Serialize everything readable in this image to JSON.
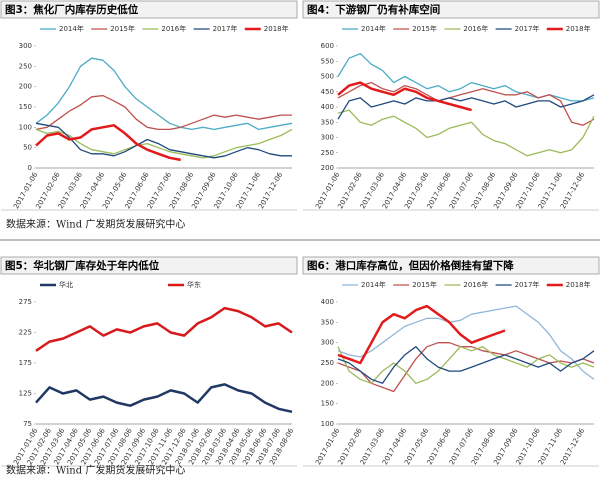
{
  "chart_data": [
    {
      "type": "line",
      "title": "图3：焦化厂内库存历史低位",
      "ylim": [
        0,
        300
      ],
      "yticks": [
        0,
        50,
        100,
        150,
        200,
        250,
        300
      ],
      "categories": [
        "2017-01-06",
        null,
        "2017-02-06",
        null,
        "2017-03-06",
        null,
        "2017-04-06",
        null,
        "2017-05-06",
        null,
        "2017-06-06",
        null,
        "2017-07-06",
        null,
        "2017-08-06",
        null,
        "2017-09-06",
        null,
        "2017-10-06",
        null,
        "2017-11-06",
        null,
        "2017-12-06",
        null
      ],
      "series": [
        {
          "name": "2014年",
          "color": "#4bacc6",
          "width": 1.3,
          "values": [
            110,
            130,
            160,
            200,
            250,
            270,
            265,
            240,
            200,
            170,
            150,
            130,
            110,
            100,
            95,
            100,
            95,
            100,
            105,
            110,
            95,
            100,
            105,
            110
          ]
        },
        {
          "name": "2015年",
          "color": "#c0504d",
          "width": 1.3,
          "values": [
            95,
            100,
            120,
            140,
            155,
            175,
            178,
            165,
            150,
            120,
            100,
            95,
            95,
            100,
            110,
            120,
            130,
            125,
            130,
            125,
            120,
            125,
            130,
            130
          ]
        },
        {
          "name": "2016年",
          "color": "#9bbb59",
          "width": 1.3,
          "values": [
            95,
            85,
            90,
            80,
            60,
            45,
            40,
            35,
            45,
            55,
            60,
            50,
            40,
            35,
            30,
            25,
            30,
            40,
            50,
            55,
            60,
            70,
            80,
            95
          ]
        },
        {
          "name": "2017年",
          "color": "#1f497d",
          "width": 1.3,
          "values": [
            110,
            105,
            100,
            75,
            45,
            35,
            35,
            30,
            40,
            55,
            70,
            60,
            45,
            40,
            35,
            30,
            25,
            30,
            40,
            50,
            45,
            35,
            30,
            30
          ]
        },
        {
          "name": "2018年",
          "color": "#e31a1c",
          "width": 2.5,
          "values": [
            55,
            80,
            85,
            70,
            75,
            95,
            100,
            105,
            85,
            60,
            45,
            35,
            25,
            20,
            null,
            null,
            null,
            null,
            null,
            null,
            null,
            null,
            null,
            null
          ]
        }
      ]
    },
    {
      "type": "line",
      "title": "图4：下游钢厂仍有补库空间",
      "ylim": [
        200,
        600
      ],
      "yticks": [
        200,
        250,
        300,
        350,
        400,
        450,
        500,
        550,
        600
      ],
      "categories": [
        "2017-01-06",
        null,
        "2017-02-06",
        null,
        "2017-03-06",
        null,
        "2017-04-06",
        null,
        "2017-05-06",
        null,
        "2017-06-06",
        null,
        "2017-07-06",
        null,
        "2017-08-06",
        null,
        "2017-09-06",
        null,
        "2017-10-06",
        null,
        "2017-11-06",
        null,
        "2017-12-06",
        null
      ],
      "series": [
        {
          "name": "2014年",
          "color": "#4bacc6",
          "width": 1.3,
          "values": [
            500,
            560,
            575,
            540,
            520,
            480,
            500,
            480,
            460,
            470,
            450,
            460,
            480,
            470,
            460,
            470,
            450,
            440,
            430,
            440,
            430,
            420,
            420,
            430
          ]
        },
        {
          "name": "2015年",
          "color": "#c0504d",
          "width": 1.3,
          "values": [
            430,
            450,
            470,
            480,
            460,
            450,
            470,
            460,
            440,
            420,
            430,
            440,
            450,
            460,
            450,
            440,
            440,
            450,
            430,
            440,
            420,
            350,
            340,
            360
          ]
        },
        {
          "name": "2016年",
          "color": "#9bbb59",
          "width": 1.3,
          "values": [
            380,
            390,
            350,
            340,
            360,
            370,
            350,
            330,
            300,
            310,
            330,
            340,
            350,
            310,
            290,
            280,
            260,
            240,
            250,
            260,
            250,
            260,
            300,
            370
          ]
        },
        {
          "name": "2017年",
          "color": "#1f497d",
          "width": 1.3,
          "values": [
            360,
            420,
            430,
            400,
            410,
            420,
            410,
            430,
            420,
            420,
            430,
            420,
            430,
            420,
            410,
            420,
            400,
            410,
            420,
            420,
            400,
            410,
            420,
            440
          ]
        },
        {
          "name": "2018年",
          "color": "#e31a1c",
          "width": 2.5,
          "values": [
            440,
            470,
            480,
            460,
            450,
            440,
            460,
            450,
            430,
            420,
            410,
            400,
            390,
            null,
            null,
            null,
            null,
            null,
            null,
            null,
            null,
            null,
            null,
            null
          ]
        }
      ]
    },
    {
      "type": "line",
      "title": "图5：华北钢厂库存处于年内低位",
      "ylim": [
        75,
        275
      ],
      "yticks": [
        75,
        125,
        175,
        225,
        275
      ],
      "categories": [
        "2017-01-06",
        "2017-02-06",
        "2017-03-06",
        "2017-04-06",
        "2017-05-06",
        "2017-06-06",
        "2017-07-06",
        "2017-08-06",
        "2017-09-06",
        "2017-10-06",
        "2017-11-06",
        "2017-12-06",
        "2018-01-06",
        "2018-02-06",
        "2018-03-06",
        "2018-04-06",
        "2018-05-06",
        "2018-06-06",
        "2018-07-06",
        "2018-08-06"
      ],
      "series": [
        {
          "name": "华北",
          "color": "#1f3864",
          "width": 2.5,
          "values": [
            110,
            135,
            125,
            130,
            115,
            120,
            110,
            105,
            115,
            120,
            130,
            125,
            110,
            135,
            140,
            130,
            125,
            110,
            100,
            95
          ]
        },
        {
          "name": "华东",
          "color": "#d7191c",
          "width": 2.5,
          "values": [
            195,
            210,
            215,
            225,
            235,
            220,
            230,
            225,
            235,
            240,
            225,
            220,
            240,
            250,
            265,
            260,
            250,
            235,
            240,
            225
          ]
        }
      ]
    },
    {
      "type": "line",
      "title": "图6：港口库存高位，但因价格倒挂有望下降",
      "ylim": [
        100,
        400
      ],
      "yticks": [
        100,
        150,
        200,
        250,
        300,
        350,
        400
      ],
      "categories": [
        "2017-01-06",
        null,
        "2017-02-06",
        null,
        "2017-03-06",
        null,
        "2017-04-06",
        null,
        "2017-05-06",
        null,
        "2017-06-06",
        null,
        "2017-07-06",
        null,
        "2017-08-06",
        null,
        "2017-09-06",
        null,
        "2017-10-06",
        null,
        "2017-11-06",
        null,
        "2017-12-06",
        null
      ],
      "series": [
        {
          "name": "2014年",
          "color": "#92b7d9",
          "width": 1.3,
          "values": [
            280,
            270,
            265,
            280,
            300,
            320,
            340,
            350,
            360,
            360,
            350,
            355,
            370,
            375,
            380,
            385,
            390,
            370,
            350,
            320,
            280,
            260,
            230,
            210
          ]
        },
        {
          "name": "2015年",
          "color": "#c0504d",
          "width": 1.3,
          "values": [
            250,
            240,
            230,
            200,
            190,
            180,
            220,
            260,
            290,
            300,
            300,
            290,
            290,
            280,
            275,
            270,
            280,
            270,
            260,
            250,
            255,
            250,
            260,
            250
          ]
        },
        {
          "name": "2016年",
          "color": "#9bbb59",
          "width": 1.3,
          "values": [
            290,
            230,
            210,
            200,
            230,
            250,
            230,
            200,
            210,
            230,
            260,
            290,
            280,
            290,
            270,
            260,
            250,
            240,
            260,
            270,
            250,
            240,
            250,
            240
          ]
        },
        {
          "name": "2017年",
          "color": "#1f497d",
          "width": 1.3,
          "values": [
            260,
            250,
            230,
            210,
            200,
            240,
            270,
            290,
            260,
            240,
            230,
            230,
            240,
            250,
            260,
            270,
            260,
            250,
            240,
            250,
            230,
            250,
            260,
            280
          ]
        },
        {
          "name": "2018年",
          "color": "#e31a1c",
          "width": 2.5,
          "values": [
            270,
            260,
            250,
            300,
            350,
            370,
            360,
            380,
            390,
            370,
            350,
            320,
            300,
            310,
            320,
            330,
            null,
            null,
            null,
            null,
            null,
            null,
            null,
            null
          ]
        }
      ]
    }
  ],
  "notes": [
    "数据来源：Wind 广发期货发展研究中心",
    "数据来源：Wind 广发期货发展研究中心"
  ]
}
